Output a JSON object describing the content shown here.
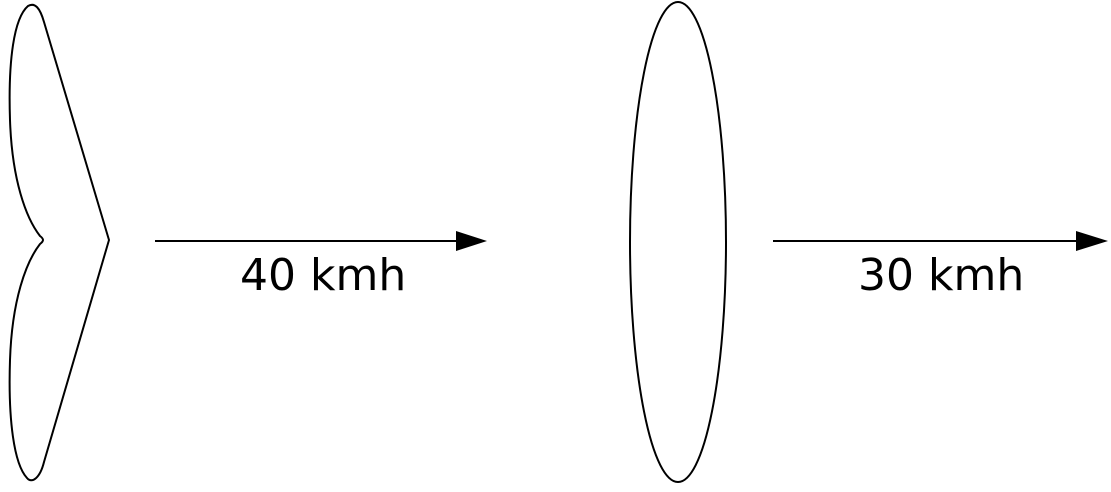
{
  "objects": [
    {
      "shape": "swept-wing",
      "speed_label": "40 kmh"
    },
    {
      "shape": "ellipse",
      "speed_label": "30 kmh"
    }
  ],
  "colors": {
    "stroke": "#000000",
    "background": "#ffffff"
  }
}
